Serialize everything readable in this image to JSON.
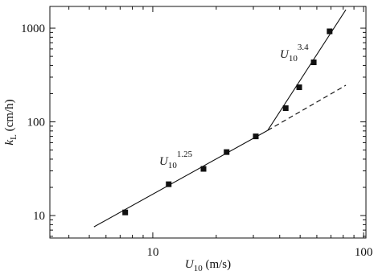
{
  "chart_data": {
    "type": "scatter",
    "x_label": {
      "symbol": "U",
      "subscript": "10",
      "unit": "(m/s)"
    },
    "y_label": {
      "symbol": "k",
      "subscript": "L",
      "unit": "(cm/h)"
    },
    "annotations": [
      {
        "symbol": "U",
        "subscript": "10",
        "exponent": "1.25"
      },
      {
        "symbol": "U",
        "subscript": "10",
        "exponent": "3.4"
      }
    ],
    "xscale": "log",
    "yscale": "log",
    "xlim": [
      3.25,
      102.6
    ],
    "ylim": [
      5.76,
      1706
    ],
    "xticks": [
      10,
      100
    ],
    "yticks": [
      10,
      100,
      1000
    ],
    "xminorticks": [
      4,
      5,
      6,
      7,
      8,
      9,
      20,
      30,
      40,
      50,
      60,
      70,
      80,
      90
    ],
    "yminorticks": [
      6,
      7,
      8,
      9,
      20,
      30,
      40,
      50,
      60,
      70,
      80,
      90,
      200,
      300,
      400,
      500,
      600,
      700,
      800,
      900
    ],
    "grid": false,
    "series": [
      {
        "type": "scatter",
        "marker": "square",
        "color": "#111111",
        "x": [
          7.4,
          11.9,
          17.4,
          22.4,
          30.8,
          42.7,
          49.5,
          58,
          69
        ],
        "values": [
          10.8,
          21.6,
          31.5,
          47.6,
          70,
          140,
          234,
          432,
          925
        ]
      },
      {
        "type": "line",
        "style": "solid",
        "color": "#111111",
        "x": [
          5.26,
          35.1
        ],
        "values": [
          7.58,
          81.2
        ]
      },
      {
        "type": "line",
        "style": "solid",
        "color": "#111111",
        "x": [
          35.1,
          82.4
        ],
        "values": [
          81.2,
          1575
        ]
      },
      {
        "type": "line",
        "style": "dashed",
        "color": "#111111",
        "x": [
          35.1,
          82.4
        ],
        "values": [
          81.2,
          246
        ]
      }
    ]
  }
}
